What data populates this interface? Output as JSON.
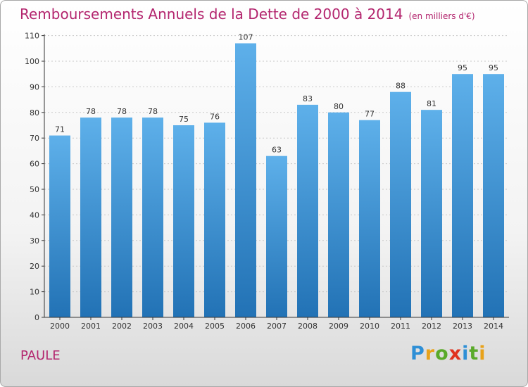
{
  "title": "Remboursements Annuels de la Dette de 2000 à 2014",
  "subtitle": "(en milliers d'€)",
  "commune": "PAULE",
  "logo": {
    "letters": [
      "P",
      "r",
      "o",
      "x",
      "i",
      "t",
      "i"
    ],
    "colors": [
      "#2e8fd6",
      "#e8a21a",
      "#5aaa2a",
      "#e0321e",
      "#2e8fd6",
      "#5aaa2a",
      "#e8a21a"
    ]
  },
  "colors": {
    "title": "#b3256e",
    "bar_top": "#5eb0ea",
    "bar_bottom": "#2272b5",
    "grid": "#c8c8c8",
    "axis": "#333333"
  },
  "chart_data": {
    "type": "bar",
    "title": "Remboursements Annuels de la Dette de 2000 à 2014",
    "subtitle": "(en milliers d'€)",
    "xlabel": "",
    "ylabel": "",
    "categories": [
      "2000",
      "2001",
      "2002",
      "2003",
      "2004",
      "2005",
      "2006",
      "2007",
      "2008",
      "2009",
      "2010",
      "2011",
      "2012",
      "2013",
      "2014"
    ],
    "values": [
      71,
      78,
      78,
      78,
      75,
      76,
      107,
      63,
      83,
      80,
      77,
      88,
      81,
      95,
      95
    ],
    "ylim": [
      0,
      110
    ],
    "yticks": [
      0,
      10,
      20,
      30,
      40,
      50,
      60,
      70,
      80,
      90,
      100,
      110
    ],
    "grid": true,
    "legend": "none"
  }
}
